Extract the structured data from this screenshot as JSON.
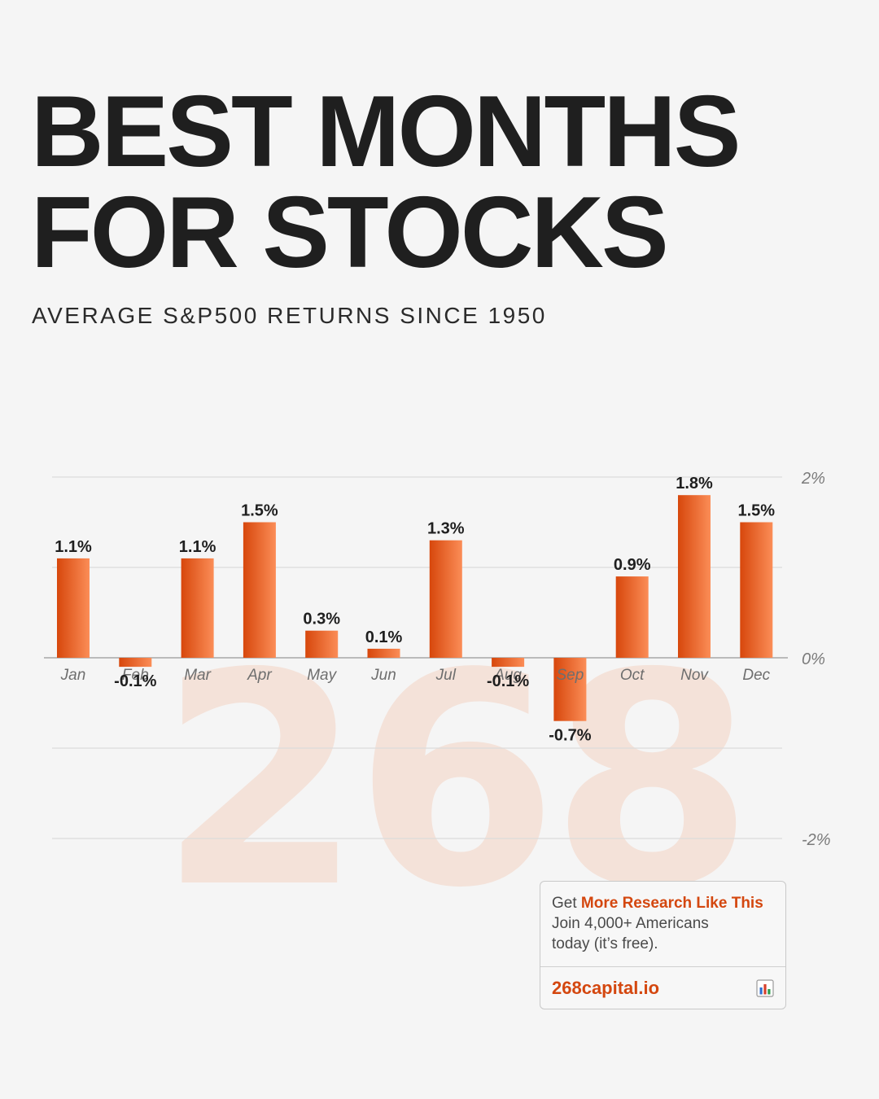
{
  "title_line1": "BEST MONTHS",
  "title_line2": "FOR STOCKS",
  "subtitle": "AVERAGE S&P500 RETURNS SINCE 1950",
  "watermark": "268",
  "cta": {
    "prefix": "Get ",
    "highlight": "More Research Like This",
    "line2": "Join 4,000+ Americans",
    "line3": "today (it’s free).",
    "link": "268capital.io",
    "icon": "bar-chart-icon"
  },
  "colors": {
    "bar_light": "#fb8d57",
    "bar_dark": "#d7470c",
    "text": "#1f1f1f",
    "accent": "#d4470f"
  },
  "chart_data": {
    "type": "bar",
    "categories": [
      "Jan",
      "Feb",
      "Mar",
      "Apr",
      "May",
      "Jun",
      "Jul",
      "Aug",
      "Sep",
      "Oct",
      "Nov",
      "Dec"
    ],
    "values": [
      1.1,
      -0.1,
      1.1,
      1.5,
      0.3,
      0.1,
      1.3,
      -0.1,
      -0.7,
      0.9,
      1.8,
      1.5
    ],
    "labels": [
      "1.1%",
      "-0.1%",
      "1.1%",
      "1.5%",
      "0.3%",
      "0.1%",
      "1.3%",
      "-0.1%",
      "-0.7%",
      "0.9%",
      "1.8%",
      "1.5%"
    ],
    "ylim": [
      -2,
      2
    ],
    "y_ticks": [
      2,
      0,
      -2
    ],
    "y_tick_labels": [
      "2%",
      "0%",
      "-2%"
    ],
    "y_axis_position": "right",
    "grid": true,
    "xlabel": "",
    "ylabel": ""
  }
}
